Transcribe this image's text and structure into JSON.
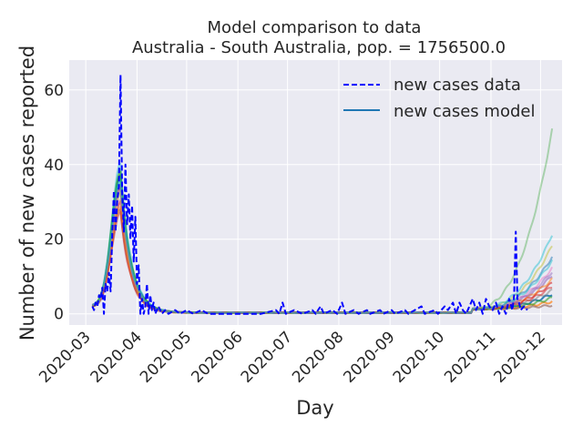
{
  "chart_data": {
    "type": "line",
    "title_line1": "Model comparison to data",
    "title_line2": "Australia - South Australia, pop. = 1756500.0",
    "xlabel": "Day",
    "ylabel": "Number of new cases reported",
    "x_range": [
      "2020-02-20",
      "2020-12-14"
    ],
    "ylim": [
      -3,
      68
    ],
    "grid": true,
    "legend_position": "upper-right",
    "x_ticks": [
      "2020-03",
      "2020-04",
      "2020-05",
      "2020-06",
      "2020-07",
      "2020-08",
      "2020-09",
      "2020-10",
      "2020-11",
      "2020-12"
    ],
    "y_ticks": [
      0,
      20,
      40,
      60
    ],
    "legend": [
      {
        "label": "new cases data",
        "color": "#0000ff",
        "style": "dashed"
      },
      {
        "label": "new cases model",
        "color": "#1f77b4",
        "style": "solid"
      }
    ],
    "data_series": {
      "name": "new cases data",
      "points": [
        [
          "2020-03-05",
          2
        ],
        [
          "2020-03-06",
          1
        ],
        [
          "2020-03-07",
          3
        ],
        [
          "2020-03-08",
          2
        ],
        [
          "2020-03-09",
          5
        ],
        [
          "2020-03-10",
          4
        ],
        [
          "2020-03-11",
          7
        ],
        [
          "2020-03-12",
          0
        ],
        [
          "2020-03-13",
          8
        ],
        [
          "2020-03-14",
          6
        ],
        [
          "2020-03-15",
          11
        ],
        [
          "2020-03-16",
          6
        ],
        [
          "2020-03-17",
          21
        ],
        [
          "2020-03-18",
          33
        ],
        [
          "2020-03-19",
          22
        ],
        [
          "2020-03-20",
          30
        ],
        [
          "2020-03-21",
          34
        ],
        [
          "2020-03-22",
          64
        ],
        [
          "2020-03-23",
          33
        ],
        [
          "2020-03-24",
          22
        ],
        [
          "2020-03-25",
          40
        ],
        [
          "2020-03-26",
          24
        ],
        [
          "2020-03-27",
          32
        ],
        [
          "2020-03-28",
          20
        ],
        [
          "2020-03-29",
          29
        ],
        [
          "2020-03-30",
          14
        ],
        [
          "2020-03-31",
          26
        ],
        [
          "2020-04-01",
          8
        ],
        [
          "2020-04-02",
          13
        ],
        [
          "2020-04-03",
          0
        ],
        [
          "2020-04-04",
          4
        ],
        [
          "2020-04-05",
          0
        ],
        [
          "2020-04-06",
          2
        ],
        [
          "2020-04-07",
          8
        ],
        [
          "2020-04-08",
          0
        ],
        [
          "2020-04-09",
          5
        ],
        [
          "2020-04-10",
          1
        ],
        [
          "2020-04-11",
          3
        ],
        [
          "2020-04-12",
          0
        ],
        [
          "2020-04-14",
          2
        ],
        [
          "2020-04-16",
          0
        ],
        [
          "2020-04-18",
          1
        ],
        [
          "2020-04-20",
          0
        ],
        [
          "2020-04-24",
          1
        ],
        [
          "2020-04-27",
          0
        ],
        [
          "2020-05-01",
          1
        ],
        [
          "2020-05-05",
          0
        ],
        [
          "2020-05-10",
          1
        ],
        [
          "2020-05-14",
          0
        ],
        [
          "2020-05-25",
          0
        ],
        [
          "2020-06-05",
          0
        ],
        [
          "2020-06-15",
          0
        ],
        [
          "2020-06-24",
          1
        ],
        [
          "2020-06-26",
          0
        ],
        [
          "2020-06-28",
          3
        ],
        [
          "2020-06-30",
          0
        ],
        [
          "2020-07-05",
          1
        ],
        [
          "2020-07-10",
          0
        ],
        [
          "2020-07-16",
          1
        ],
        [
          "2020-07-18",
          0
        ],
        [
          "2020-07-21",
          2
        ],
        [
          "2020-07-23",
          0
        ],
        [
          "2020-07-28",
          1
        ],
        [
          "2020-07-31",
          0
        ],
        [
          "2020-08-03",
          3
        ],
        [
          "2020-08-05",
          0
        ],
        [
          "2020-08-10",
          1
        ],
        [
          "2020-08-13",
          0
        ],
        [
          "2020-08-18",
          1
        ],
        [
          "2020-08-20",
          0
        ],
        [
          "2020-08-26",
          1
        ],
        [
          "2020-08-28",
          0
        ],
        [
          "2020-09-02",
          1
        ],
        [
          "2020-09-04",
          0
        ],
        [
          "2020-09-10",
          1
        ],
        [
          "2020-09-12",
          0
        ],
        [
          "2020-09-20",
          2
        ],
        [
          "2020-09-22",
          0
        ],
        [
          "2020-09-28",
          1
        ],
        [
          "2020-09-30",
          0
        ],
        [
          "2020-10-04",
          2
        ],
        [
          "2020-10-06",
          1
        ],
        [
          "2020-10-09",
          3
        ],
        [
          "2020-10-11",
          0
        ],
        [
          "2020-10-13",
          3
        ],
        [
          "2020-10-15",
          1
        ],
        [
          "2020-10-17",
          0
        ],
        [
          "2020-10-19",
          2
        ],
        [
          "2020-10-21",
          4
        ],
        [
          "2020-10-23",
          1
        ],
        [
          "2020-10-25",
          3
        ],
        [
          "2020-10-27",
          0
        ],
        [
          "2020-10-29",
          4
        ],
        [
          "2020-10-31",
          2
        ],
        [
          "2020-11-02",
          1
        ],
        [
          "2020-11-04",
          3
        ],
        [
          "2020-11-06",
          0
        ],
        [
          "2020-11-08",
          2
        ],
        [
          "2020-11-10",
          0
        ],
        [
          "2020-11-12",
          4
        ],
        [
          "2020-11-14",
          1
        ],
        [
          "2020-11-15",
          5
        ],
        [
          "2020-11-16",
          22
        ],
        [
          "2020-11-17",
          4
        ],
        [
          "2020-11-18",
          3
        ],
        [
          "2020-11-19",
          1
        ],
        [
          "2020-11-21",
          2
        ],
        [
          "2020-11-23",
          1
        ]
      ]
    },
    "model_shape": {
      "start": "2020-03-05",
      "end": "2020-12-08",
      "peak_date": "2020-03-22",
      "peak_value": 37,
      "baseline": 0.3,
      "late_rise_start": "2020-10-20"
    },
    "model_runs": [
      {
        "color": "#1f77b4",
        "peak": 37,
        "end_value": 5,
        "opacity": 0.9
      },
      {
        "color": "#ff7f0e",
        "peak": 34,
        "end_value": 3,
        "opacity": 0.7
      },
      {
        "color": "#2ca02c",
        "peak": 39,
        "end_value": 49,
        "opacity": 0.35
      },
      {
        "color": "#d62728",
        "peak": 30,
        "end_value": 8,
        "opacity": 0.6
      },
      {
        "color": "#9467bd",
        "peak": 33,
        "end_value": 10,
        "opacity": 0.6
      },
      {
        "color": "#8c564b",
        "peak": 28,
        "end_value": 2,
        "opacity": 0.6
      },
      {
        "color": "#e377c2",
        "peak": 31,
        "end_value": 12,
        "opacity": 0.5
      },
      {
        "color": "#7f7f7f",
        "peak": 35,
        "end_value": 6,
        "opacity": 0.5
      },
      {
        "color": "#bcbd22",
        "peak": 32,
        "end_value": 18,
        "opacity": 0.45
      },
      {
        "color": "#17becf",
        "peak": 40,
        "end_value": 21,
        "opacity": 0.45
      },
      {
        "color": "#1f77b4",
        "peak": 36,
        "end_value": 15,
        "opacity": 0.5
      },
      {
        "color": "#ff7f0e",
        "peak": 29,
        "end_value": 9,
        "opacity": 0.5
      },
      {
        "color": "#2ca02c",
        "peak": 38,
        "end_value": 4,
        "opacity": 0.6
      },
      {
        "color": "#d62728",
        "peak": 27,
        "end_value": 7,
        "opacity": 0.5
      },
      {
        "color": "#9467bd",
        "peak": 34,
        "end_value": 11,
        "opacity": 0.5
      },
      {
        "color": "#17becf",
        "peak": 36,
        "end_value": 14,
        "opacity": 0.45
      }
    ]
  }
}
